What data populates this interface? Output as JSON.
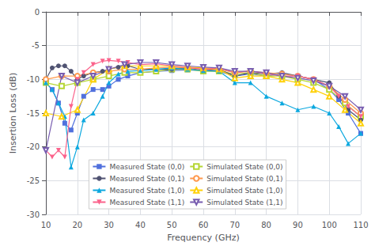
{
  "chart_data": {
    "type": "line",
    "xlabel": "Frequency (GHz)",
    "ylabel": "Insertion Loss (dB)",
    "xlim": [
      10,
      110
    ],
    "ylim": [
      -30,
      0
    ],
    "xticks": [
      10,
      20,
      30,
      40,
      50,
      60,
      70,
      80,
      90,
      100,
      110
    ],
    "yticks": [
      0,
      -5,
      -10,
      -15,
      -20,
      -25,
      -30
    ],
    "grid": true,
    "legend": "lower center",
    "series": [
      {
        "name": "Measured State (0,0)",
        "marker": "square",
        "x": [
          10,
          12,
          14,
          16,
          18,
          20,
          22,
          25,
          28,
          30,
          33,
          36,
          40,
          45,
          50,
          55,
          60,
          65,
          70,
          75,
          80,
          85,
          90,
          95,
          100,
          103,
          106,
          110
        ],
        "values": [
          -10.5,
          -11.5,
          -13.5,
          -16.5,
          -17.5,
          -15.0,
          -12.5,
          -11.5,
          -11.5,
          -11.0,
          -10.0,
          -9.5,
          -9.0,
          -8.8,
          -8.7,
          -8.6,
          -8.7,
          -8.8,
          -9.5,
          -9.2,
          -9.5,
          -9.2,
          -9.5,
          -10.0,
          -11.5,
          -13.0,
          -15.0,
          -18.0
        ]
      },
      {
        "name": "Simulated State (0,0)",
        "marker": "square-open",
        "x": [
          10,
          15,
          20,
          25,
          30,
          35,
          40,
          45,
          50,
          55,
          60,
          65,
          70,
          75,
          80,
          85,
          90,
          95,
          100,
          105,
          110
        ],
        "values": [
          -10.5,
          -11.0,
          -10.5,
          -10.0,
          -9.5,
          -9.0,
          -9.0,
          -8.8,
          -8.5,
          -8.5,
          -8.8,
          -8.8,
          -9.2,
          -9.0,
          -9.5,
          -9.5,
          -10.0,
          -10.5,
          -11.5,
          -13.5,
          -15.5
        ]
      },
      {
        "name": "Measured State (0,1)",
        "marker": "circle",
        "x": [
          10,
          12,
          14,
          16,
          18,
          20,
          22,
          25,
          28,
          30,
          33,
          36,
          40,
          45,
          50,
          55,
          60,
          65,
          70,
          75,
          80,
          85,
          90,
          95,
          100,
          103,
          106,
          110
        ],
        "values": [
          -10.0,
          -8.3,
          -8.0,
          -8.0,
          -8.8,
          -10.0,
          -9.5,
          -9.0,
          -8.8,
          -8.5,
          -8.2,
          -8.0,
          -8.5,
          -8.5,
          -8.5,
          -8.3,
          -8.7,
          -8.5,
          -9.5,
          -9.0,
          -9.2,
          -9.0,
          -9.5,
          -10.0,
          -10.5,
          -12.5,
          -14.5,
          -16.0
        ]
      },
      {
        "name": "Simulated State (0,1)",
        "marker": "circle-open",
        "x": [
          10,
          15,
          20,
          25,
          30,
          35,
          40,
          45,
          50,
          55,
          60,
          65,
          70,
          75,
          80,
          85,
          90,
          95,
          100,
          105,
          110
        ],
        "values": [
          -10.0,
          -9.5,
          -9.5,
          -9.0,
          -8.8,
          -8.5,
          -8.5,
          -8.3,
          -8.2,
          -8.3,
          -8.5,
          -8.5,
          -9.0,
          -8.8,
          -9.0,
          -9.2,
          -9.5,
          -10.0,
          -11.0,
          -13.0,
          -15.0
        ]
      },
      {
        "name": "Measured State (1,0)",
        "marker": "triangle-up",
        "x": [
          10,
          12,
          14,
          16,
          18,
          20,
          22,
          25,
          28,
          30,
          33,
          36,
          40,
          45,
          50,
          55,
          60,
          65,
          70,
          75,
          80,
          85,
          90,
          95,
          100,
          103,
          106,
          110
        ],
        "values": [
          -10.5,
          -11.5,
          -13.5,
          -15.5,
          -23.0,
          -20.0,
          -16.0,
          -15.0,
          -12.5,
          -10.5,
          -9.2,
          -8.8,
          -8.7,
          -8.5,
          -8.3,
          -8.5,
          -8.7,
          -8.8,
          -10.5,
          -10.5,
          -12.5,
          -13.5,
          -14.5,
          -14.0,
          -15.0,
          -17.0,
          -19.5,
          -18.0
        ]
      },
      {
        "name": "Simulated State (1,0)",
        "marker": "triangle-up-open",
        "x": [
          10,
          15,
          20,
          25,
          30,
          35,
          40,
          45,
          50,
          55,
          60,
          65,
          70,
          75,
          80,
          85,
          90,
          95,
          100,
          105,
          110
        ],
        "values": [
          -15.0,
          -15.5,
          -14.5,
          -10.0,
          -8.5,
          -8.0,
          -8.0,
          -8.0,
          -8.0,
          -8.2,
          -8.3,
          -8.5,
          -9.8,
          -9.5,
          -9.5,
          -10.0,
          -10.5,
          -11.5,
          -12.5,
          -14.5,
          -16.5
        ]
      },
      {
        "name": "Measured State (1,1)",
        "marker": "triangle-down",
        "x": [
          10,
          12,
          14,
          16,
          18,
          20,
          22,
          25,
          28,
          30,
          33,
          36,
          40,
          45,
          50,
          55,
          60,
          65,
          70,
          75,
          80,
          85,
          90,
          95,
          100,
          103,
          106,
          110
        ],
        "values": [
          -20.5,
          -21.5,
          -20.5,
          -21.5,
          -14.0,
          -10.0,
          -9.0,
          -7.8,
          -7.3,
          -7.2,
          -7.3,
          -7.5,
          -7.8,
          -7.7,
          -8.0,
          -8.2,
          -8.5,
          -8.3,
          -9.0,
          -8.7,
          -9.2,
          -9.5,
          -9.5,
          -10.0,
          -11.0,
          -12.5,
          -14.0,
          -15.5
        ]
      },
      {
        "name": "Simulated State (1,1)",
        "marker": "triangle-down-open",
        "x": [
          10,
          15,
          20,
          25,
          30,
          35,
          40,
          45,
          50,
          55,
          60,
          65,
          70,
          75,
          80,
          85,
          90,
          95,
          100,
          105,
          110
        ],
        "values": [
          -20.5,
          -9.5,
          -10.5,
          -9.5,
          -8.5,
          -7.8,
          -7.5,
          -7.5,
          -7.8,
          -8.0,
          -8.2,
          -8.3,
          -8.8,
          -8.8,
          -9.0,
          -9.5,
          -9.8,
          -10.2,
          -11.0,
          -12.5,
          -14.5
        ]
      }
    ]
  }
}
